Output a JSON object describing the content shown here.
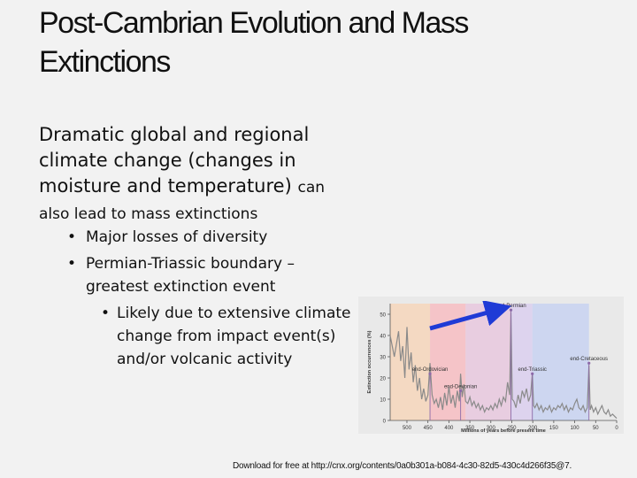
{
  "slide": {
    "title": "Post-Cambrian Evolution and Mass Extinctions",
    "lead_large": "Dramatic global and regional climate change (changes in moisture and temperature)",
    "lead_small": "can",
    "lead_cont": "also lead to mass extinctions",
    "bullets": [
      {
        "text": "Major losses of diversity"
      },
      {
        "text": "Permian-Triassic boundary – greatest extinction event",
        "sub": [
          {
            "text": "Likely due to extensive climate change from impact event(s) and/or volcanic activity"
          }
        ]
      }
    ],
    "bullet_glyph": "•",
    "footer": "Download for free at http://cnx.org/contents/0a0b301a-b084-4c30-82d5-430c4d266f35@7."
  },
  "chart_data": {
    "type": "line",
    "xlabel": "Millions of years before present time",
    "ylabel": "Extinction occurrences (%)",
    "x_ticks": [
      500,
      450,
      400,
      350,
      300,
      250,
      200,
      150,
      100,
      50,
      0
    ],
    "y_ticks": [
      0,
      10,
      20,
      30,
      40,
      50
    ],
    "xlim": [
      540,
      0
    ],
    "ylim": [
      0,
      55
    ],
    "periods": [
      {
        "from": 540,
        "to": 445,
        "color": "#f4d9c2"
      },
      {
        "from": 445,
        "to": 360,
        "color": "#f5c4c8"
      },
      {
        "from": 360,
        "to": 252,
        "color": "#e8cde0"
      },
      {
        "from": 252,
        "to": 201,
        "color": "#ddd3ee"
      },
      {
        "from": 201,
        "to": 66,
        "color": "#cdd6f0"
      }
    ],
    "annotations": [
      {
        "label": "end-Ordovician",
        "x": 445,
        "y": 22
      },
      {
        "label": "end-Devonian",
        "x": 372,
        "y": 14
      },
      {
        "label": "end-Permian",
        "x": 252,
        "y": 52
      },
      {
        "label": "end-Triassic",
        "x": 201,
        "y": 22
      },
      {
        "label": "end-Cretaceous",
        "x": 66,
        "y": 27
      }
    ],
    "series": [
      {
        "x": [
          540,
          530,
          520,
          515,
          510,
          505,
          500,
          495,
          490,
          485,
          480,
          475,
          470,
          465,
          460,
          455,
          450,
          445,
          440,
          435,
          430,
          425,
          420,
          415,
          410,
          405,
          400,
          395,
          390,
          385,
          380,
          375,
          372,
          368,
          364,
          360,
          355,
          350,
          345,
          340,
          335,
          330,
          325,
          320,
          315,
          310,
          305,
          300,
          295,
          290,
          285,
          280,
          275,
          270,
          265,
          260,
          255,
          252,
          249,
          245,
          240,
          235,
          230,
          225,
          220,
          215,
          210,
          205,
          201,
          198,
          195,
          190,
          185,
          180,
          175,
          170,
          165,
          160,
          155,
          150,
          145,
          140,
          135,
          130,
          125,
          120,
          115,
          110,
          105,
          100,
          95,
          90,
          85,
          80,
          75,
          70,
          66,
          63,
          60,
          55,
          50,
          45,
          40,
          35,
          30,
          25,
          20,
          15,
          10,
          5,
          0
        ],
        "y": [
          40,
          30,
          42,
          28,
          35,
          20,
          44,
          24,
          32,
          18,
          26,
          14,
          20,
          10,
          15,
          9,
          12,
          27,
          12,
          8,
          10,
          6,
          11,
          5,
          13,
          7,
          16,
          8,
          12,
          6,
          14,
          9,
          22,
          11,
          17,
          9,
          8,
          11,
          7,
          9,
          6,
          8,
          5,
          7,
          4,
          6,
          5,
          7,
          5,
          8,
          6,
          10,
          7,
          11,
          9,
          18,
          12,
          51,
          10,
          9,
          6,
          12,
          8,
          14,
          11,
          15,
          9,
          12,
          22,
          7,
          6,
          8,
          5,
          7,
          4,
          6,
          5,
          7,
          4,
          6,
          5,
          7,
          6,
          8,
          5,
          7,
          4,
          6,
          5,
          8,
          10,
          6,
          5,
          7,
          4,
          6,
          26,
          5,
          7,
          4,
          6,
          3,
          5,
          7,
          4,
          3,
          5,
          2,
          3,
          2,
          1
        ]
      }
    ],
    "line_color": "#8a8a8a",
    "marker_color": "#8c6aa8"
  },
  "colors": {
    "arrow": "#1f3bd6"
  }
}
